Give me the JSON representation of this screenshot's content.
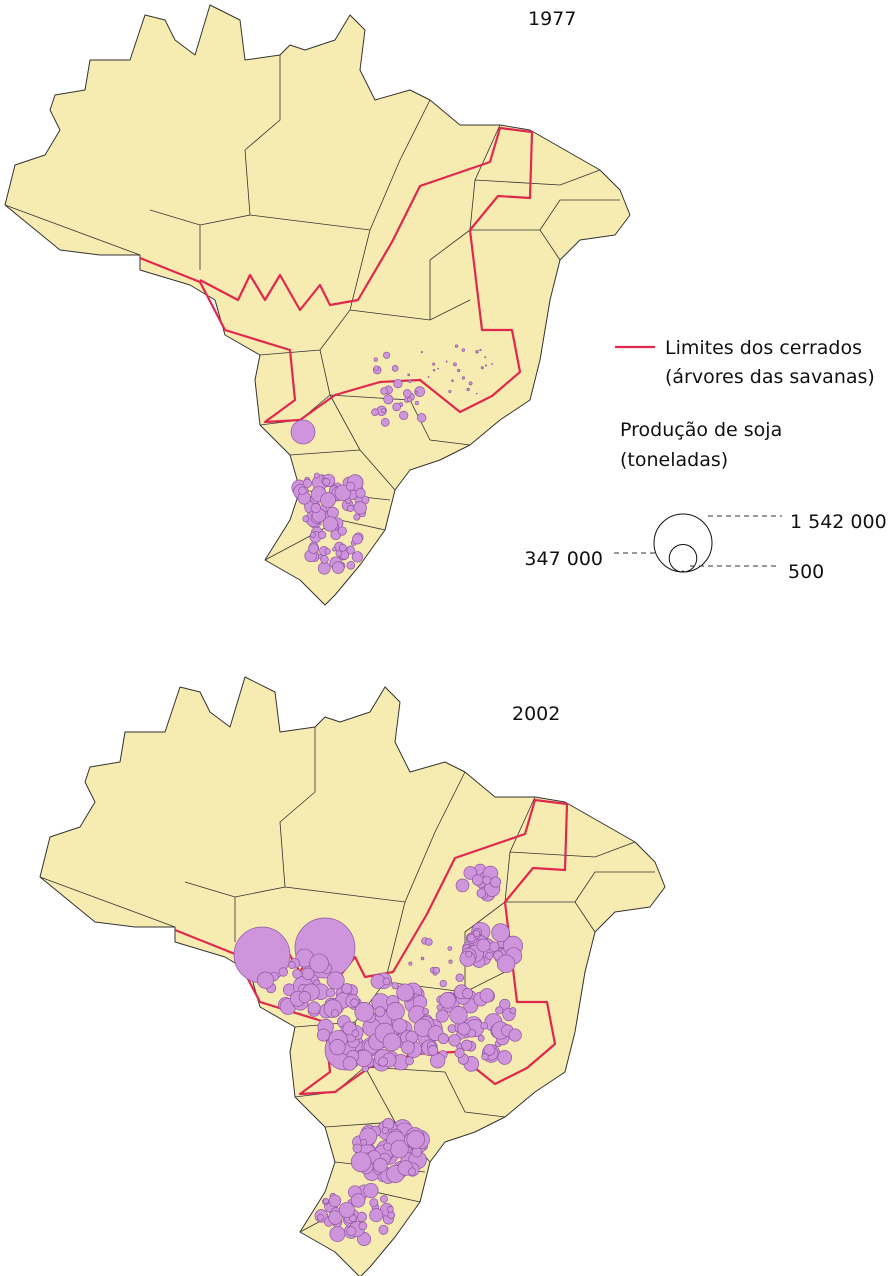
{
  "maps": [
    {
      "year": "1977"
    },
    {
      "year": "2002"
    }
  ],
  "legend": {
    "boundary": "Limites dos cerrados",
    "boundary_note": "(árvores das savanas)",
    "title": "Produção de soja",
    "unit": "(toneladas)",
    "sizes": [
      {
        "value": 1542000,
        "label": "1 542 000"
      },
      {
        "value": 347000,
        "label": "347 000"
      },
      {
        "value": 500,
        "label": "500"
      }
    ]
  }
}
